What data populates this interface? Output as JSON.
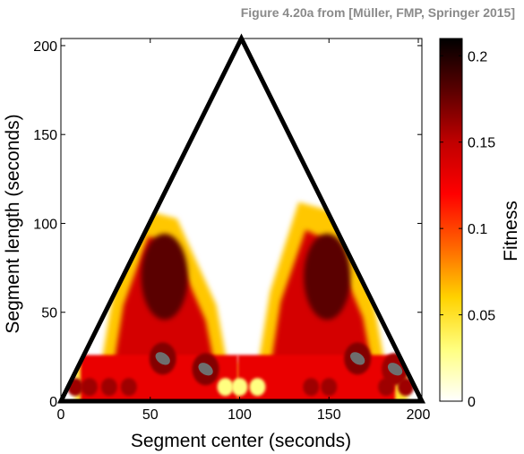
{
  "caption": "Figure 4.20a from [Müller, FMP, Springer 2015]",
  "chart_data": {
    "type": "heatmap",
    "title": "",
    "xlabel": "Segment center (seconds)",
    "ylabel": "Segment length (seconds)",
    "xlim": [
      0,
      202
    ],
    "ylim": [
      0,
      204
    ],
    "xticks": [
      0,
      50,
      100,
      150,
      200
    ],
    "yticks": [
      0,
      50,
      100,
      150,
      200
    ],
    "triangle": [
      [
        0,
        0
      ],
      [
        101,
        204
      ],
      [
        202,
        0
      ]
    ],
    "colorbar": {
      "label": "Fitness",
      "range": [
        0,
        0.21
      ],
      "ticks": [
        "0",
        "0.05",
        "0.1",
        "0.15",
        "0.2"
      ],
      "tick_values": [
        0,
        0.05,
        0.1,
        0.15,
        0.2
      ],
      "colormap": [
        "#ffffff",
        "#ffff80",
        "#ffd200",
        "#ff6400",
        "#ff0000",
        "#c00000",
        "#5a0000",
        "#000000"
      ]
    },
    "regions": [
      {
        "center": [
          57,
          55
        ],
        "length_range": [
          0,
          108
        ],
        "half_width": 40,
        "peak_fitness": 0.18
      },
      {
        "center": [
          145,
          55
        ],
        "length_range": [
          0,
          112
        ],
        "half_width": 40,
        "peak_fitness": 0.18
      },
      {
        "center": [
          57,
          24
        ],
        "peak_fitness": 0.21
      },
      {
        "center": [
          81,
          18
        ],
        "peak_fitness": 0.21
      },
      {
        "center": [
          166,
          24
        ],
        "peak_fitness": 0.21
      },
      {
        "center": [
          187,
          18
        ],
        "peak_fitness": 0.2
      }
    ]
  }
}
